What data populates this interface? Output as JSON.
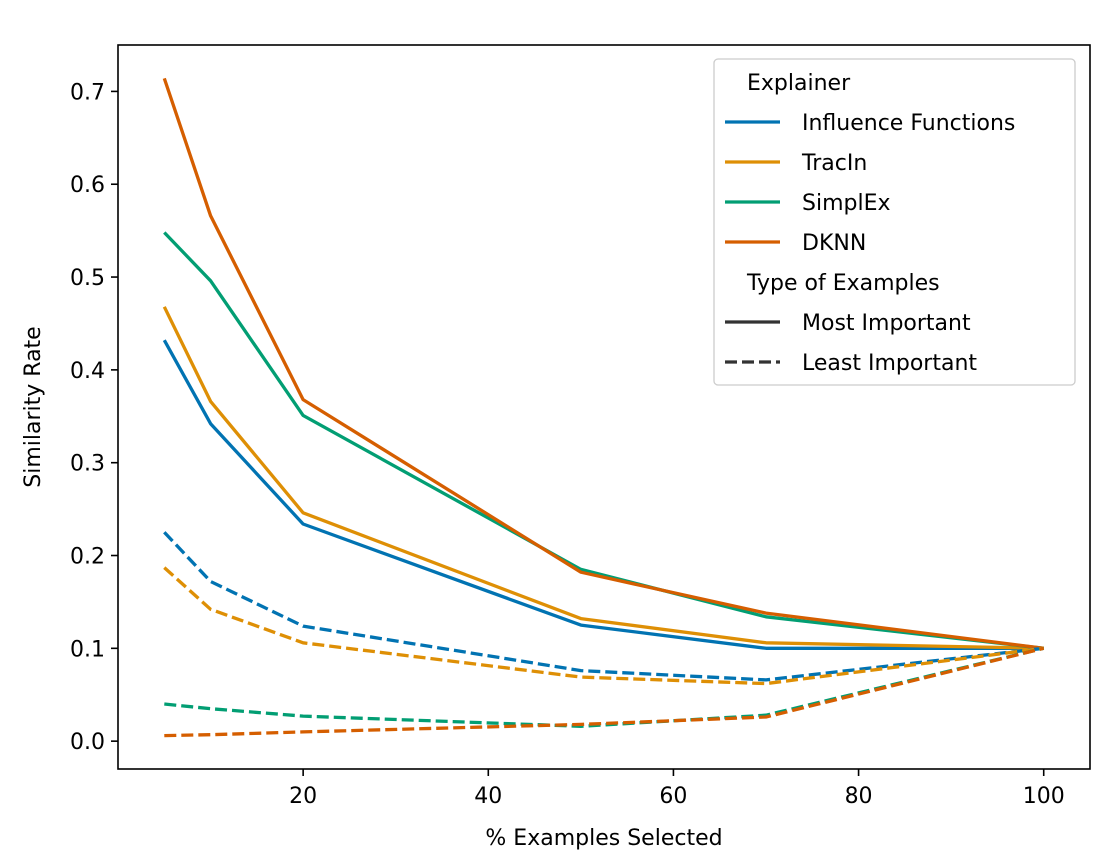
{
  "chart_data": {
    "type": "line",
    "xlabel": "% Examples Selected",
    "ylabel": "Similarity Rate",
    "xlim": [
      0,
      105
    ],
    "ylim": [
      -0.03,
      0.75
    ],
    "xticks": [
      20,
      40,
      60,
      80,
      100
    ],
    "yticks": [
      0.0,
      0.1,
      0.2,
      0.3,
      0.4,
      0.5,
      0.6,
      0.7
    ],
    "grid": false,
    "legend": {
      "position": "top-right",
      "hue_title": "Explainer",
      "style_title": "Type of Examples",
      "explainers": [
        {
          "name": "Influence Functions",
          "color": "#0173b2"
        },
        {
          "name": "TracIn",
          "color": "#de8f05"
        },
        {
          "name": "SimplEx",
          "color": "#029e73"
        },
        {
          "name": "DKNN",
          "color": "#d55e00"
        }
      ],
      "styles": [
        {
          "name": "Most Important",
          "dash": "solid"
        },
        {
          "name": "Least Important",
          "dash": "dashed"
        }
      ]
    },
    "x": [
      5,
      10,
      20,
      50,
      70,
      100
    ],
    "series": [
      {
        "name": "Influence Functions",
        "type_of_examples": "Most Important",
        "color": "#0173b2",
        "dash": "solid",
        "values": [
          0.432,
          0.342,
          0.234,
          0.125,
          0.1,
          0.1
        ]
      },
      {
        "name": "TracIn",
        "type_of_examples": "Most Important",
        "color": "#de8f05",
        "dash": "solid",
        "values": [
          0.468,
          0.366,
          0.246,
          0.132,
          0.106,
          0.1
        ]
      },
      {
        "name": "SimplEx",
        "type_of_examples": "Most Important",
        "color": "#029e73",
        "dash": "solid",
        "values": [
          0.548,
          0.496,
          0.351,
          0.185,
          0.134,
          0.1
        ]
      },
      {
        "name": "DKNN",
        "type_of_examples": "Most Important",
        "color": "#d55e00",
        "dash": "solid",
        "values": [
          0.714,
          0.566,
          0.368,
          0.182,
          0.138,
          0.1
        ]
      },
      {
        "name": "Influence Functions",
        "type_of_examples": "Least Important",
        "color": "#0173b2",
        "dash": "dashed",
        "values": [
          0.225,
          0.172,
          0.124,
          0.076,
          0.066,
          0.1
        ]
      },
      {
        "name": "TracIn",
        "type_of_examples": "Least Important",
        "color": "#de8f05",
        "dash": "dashed",
        "values": [
          0.187,
          0.142,
          0.106,
          0.069,
          0.062,
          0.1
        ]
      },
      {
        "name": "SimplEx",
        "type_of_examples": "Least Important",
        "color": "#029e73",
        "dash": "dashed",
        "values": [
          0.04,
          0.035,
          0.027,
          0.016,
          0.028,
          0.1
        ]
      },
      {
        "name": "DKNN",
        "type_of_examples": "Least Important",
        "color": "#d55e00",
        "dash": "dashed",
        "values": [
          0.006,
          0.007,
          0.01,
          0.018,
          0.026,
          0.1
        ]
      }
    ]
  }
}
